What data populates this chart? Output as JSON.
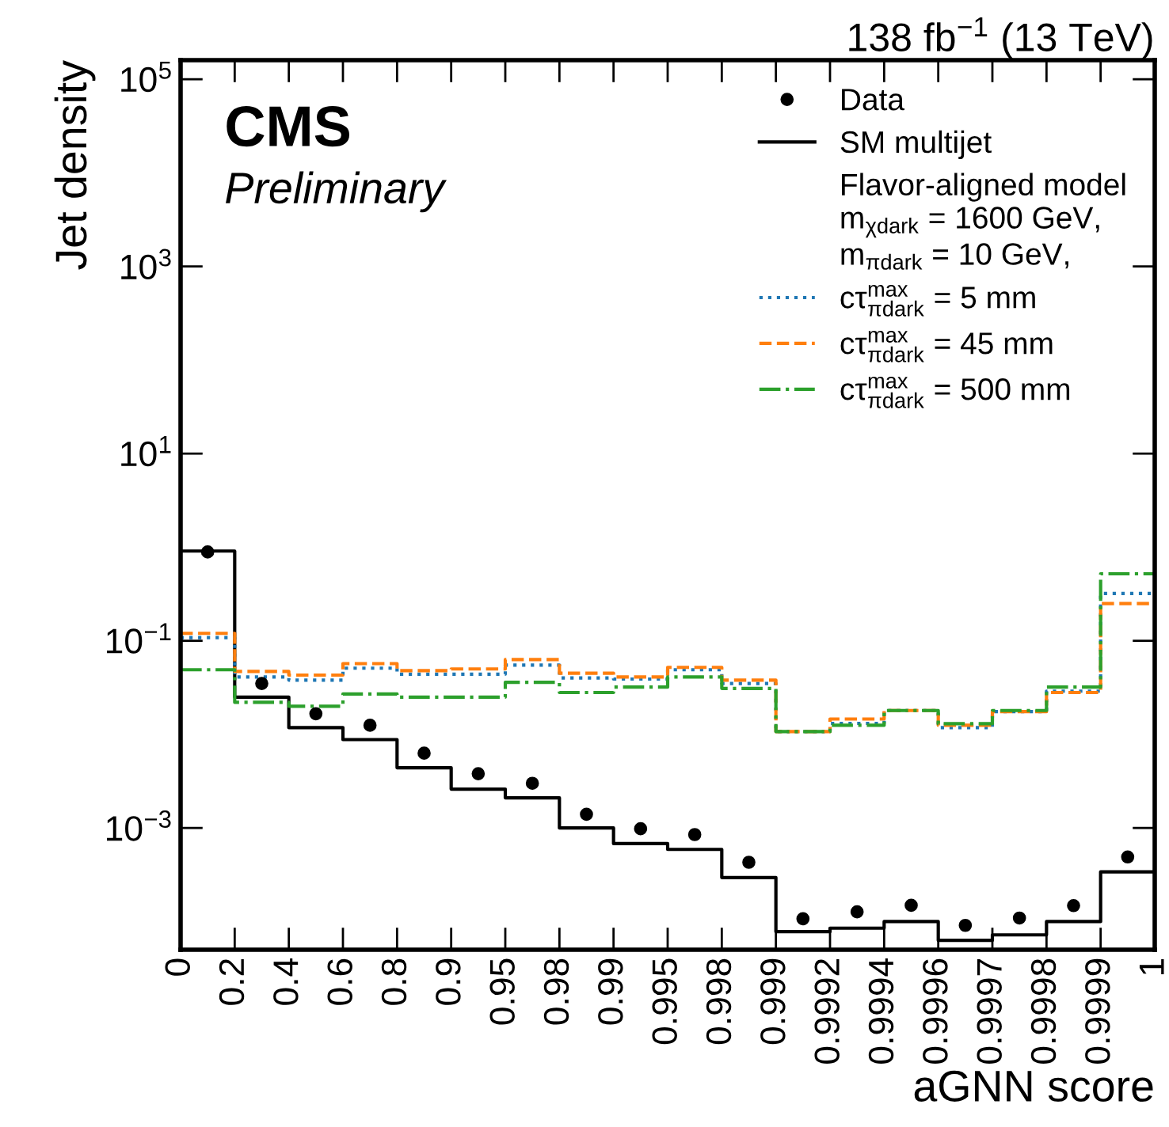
{
  "chart_data": {
    "type": "step",
    "title": "138 fb$^{−1}$ (13 TeV)",
    "xlabel": "aGNN score",
    "ylabel": "Jet density",
    "legend_title": "Flavor-aligned model\nm$_{χdark}$ = 1600 GeV,\nm$_{πdark}$ = 10 GeV,",
    "annotations": [
      "CMS",
      "Preliminary"
    ],
    "categories": [
      "0",
      null,
      "0.2",
      null,
      "0.4",
      null,
      "0.6",
      null,
      "0.8",
      null,
      "0.9",
      null,
      "0.95",
      null,
      "0.98",
      null,
      "0.99",
      null,
      "0.995",
      null,
      "0.998",
      null,
      "0.999",
      null,
      "0.9992",
      null,
      "0.9994",
      null,
      "0.9996",
      null,
      "0.9997",
      null,
      "0.9998",
      null,
      "0.9999",
      null,
      "1"
    ],
    "log": "y",
    "grid": false,
    "legend": "top right",
    "ylim": [
      5e-05,
      160000
    ],
    "yticks": [
      {
        "value": 0.001,
        "label": "10$^{−3}$"
      },
      {
        "value": 0.1,
        "label": "10$^{−1}$"
      },
      {
        "value": 10,
        "label": "10$^{1}$"
      },
      {
        "value": 1000,
        "label": "10$^{3}$"
      },
      {
        "value": 100000,
        "label": "10$^{5}$"
      }
    ],
    "series": [
      {
        "name": "Data",
        "type": "scatter",
        "marker": "circle",
        "color": "#000000",
        "values": [
          null,
          0.89,
          null,
          0.035,
          null,
          0.0166,
          null,
          0.0125,
          null,
          0.0063,
          null,
          0.0038,
          null,
          0.003,
          null,
          0.0014,
          null,
          0.00098,
          null,
          0.00085,
          null,
          0.00043,
          null,
          0.000107,
          null,
          0.000127,
          null,
          0.000149,
          null,
          9.1e-05,
          null,
          0.000109,
          null,
          0.000148,
          null,
          0.00049,
          null
        ]
      },
      {
        "name": "SM multijet",
        "line_style": "solid",
        "color": "#000000",
        "values": [
          0.91,
          0.91,
          0.025,
          0.025,
          0.0118,
          0.0118,
          0.0088,
          0.0088,
          0.0044,
          0.0044,
          0.0026,
          0.0026,
          0.0021,
          0.0021,
          0.001,
          0.001,
          0.00068,
          0.00068,
          0.00059,
          0.00059,
          0.000295,
          0.000295,
          7.8e-05,
          7.8e-05,
          8.5e-05,
          8.5e-05,
          0.0001,
          0.0001,
          6.3e-05,
          6.3e-05,
          7.2e-05,
          7.2e-05,
          0.0001,
          0.0001,
          0.00034,
          0.00034,
          0.00034
        ]
      },
      {
        "name": "cτ$^{max}$$_{πdark}$ = 5 mm",
        "line_style": "dotted",
        "color": "#1f77b4",
        "values": [
          0.108,
          0.108,
          0.041,
          0.041,
          0.038,
          0.038,
          0.051,
          0.051,
          0.044,
          0.044,
          0.044,
          0.044,
          0.055,
          0.055,
          0.04,
          0.04,
          0.039,
          0.039,
          0.049,
          0.049,
          0.035,
          0.035,
          0.0107,
          0.0107,
          0.0131,
          0.0131,
          0.018,
          0.018,
          0.0118,
          0.0118,
          0.0175,
          0.0175,
          0.029,
          0.029,
          0.32,
          0.32,
          0.32
        ]
      },
      {
        "name": "cτ$^{max}$$_{πdark}$ = 45 mm",
        "line_style": "dashed",
        "color": "#ff7f0e",
        "values": [
          0.12,
          0.12,
          0.047,
          0.047,
          0.043,
          0.043,
          0.057,
          0.057,
          0.048,
          0.048,
          0.05,
          0.05,
          0.063,
          0.063,
          0.045,
          0.045,
          0.041,
          0.041,
          0.052,
          0.052,
          0.038,
          0.038,
          0.0107,
          0.0107,
          0.0146,
          0.0146,
          0.018,
          0.018,
          0.0125,
          0.0125,
          0.0175,
          0.0175,
          0.028,
          0.028,
          0.25,
          0.25,
          0.25
        ]
      },
      {
        "name": "cτ$^{max}$$_{πdark}$ = 500 mm",
        "line_style": "dashdot",
        "color": "#2ca02c",
        "values": [
          0.049,
          0.049,
          0.022,
          0.022,
          0.02,
          0.02,
          0.027,
          0.027,
          0.025,
          0.025,
          0.025,
          0.025,
          0.036,
          0.036,
          0.028,
          0.028,
          0.032,
          0.032,
          0.041,
          0.041,
          0.031,
          0.031,
          0.0107,
          0.0107,
          0.0125,
          0.0125,
          0.018,
          0.018,
          0.013,
          0.013,
          0.018,
          0.018,
          0.032,
          0.032,
          0.52,
          0.52,
          0.52
        ]
      }
    ]
  }
}
